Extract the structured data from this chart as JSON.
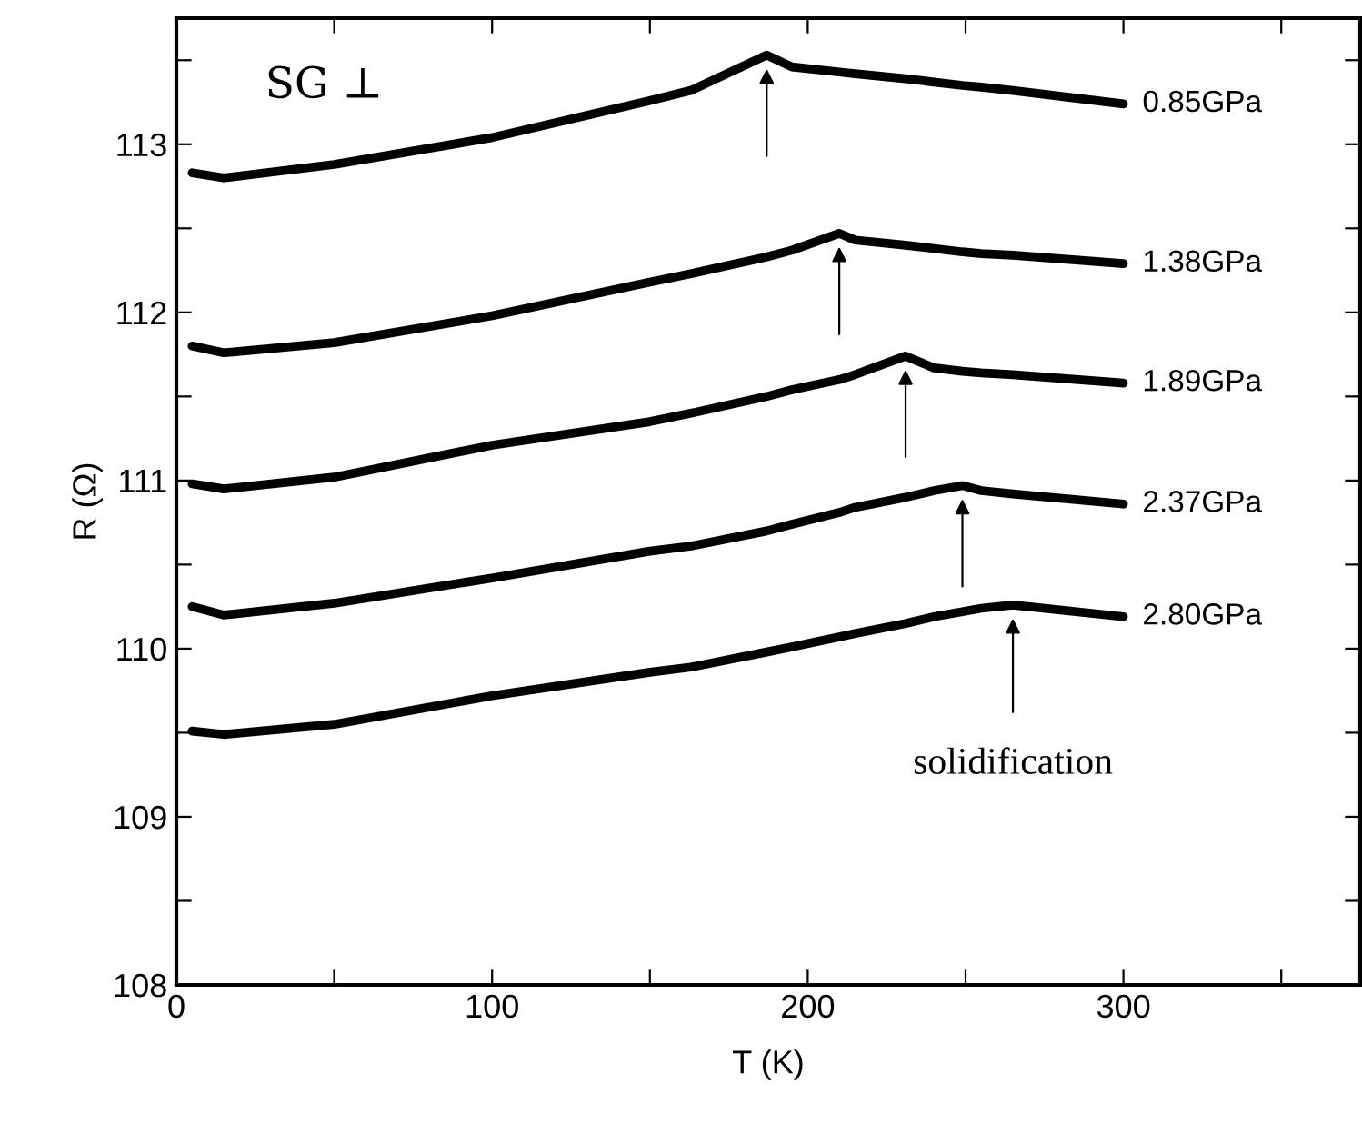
{
  "chart_data": {
    "type": "line",
    "xlabel": "T (K)",
    "ylabel": "R (Ω)",
    "x": [
      5,
      15,
      50,
      100,
      150,
      163,
      187,
      195,
      210,
      215,
      231,
      240,
      249,
      255,
      265,
      300
    ],
    "series": [
      {
        "name": "0.85GPa",
        "color": "#000000",
        "values": [
          112.83,
          112.8,
          112.88,
          113.04,
          113.26,
          113.32,
          113.53,
          113.46,
          113.43,
          113.42,
          113.39,
          113.37,
          113.35,
          113.34,
          113.32,
          113.24
        ]
      },
      {
        "name": "1.38GPa",
        "color": "#000000",
        "values": [
          111.8,
          111.76,
          111.82,
          111.98,
          112.18,
          112.23,
          112.33,
          112.37,
          112.47,
          112.43,
          112.4,
          112.38,
          112.36,
          112.35,
          112.34,
          112.29
        ]
      },
      {
        "name": "1.89GPa",
        "color": "#000000",
        "values": [
          110.98,
          110.95,
          111.02,
          111.21,
          111.35,
          111.4,
          111.5,
          111.54,
          111.6,
          111.63,
          111.74,
          111.67,
          111.65,
          111.64,
          111.63,
          111.58
        ]
      },
      {
        "name": "2.37GPa",
        "color": "#000000",
        "values": [
          110.25,
          110.2,
          110.27,
          110.42,
          110.58,
          110.61,
          110.7,
          110.74,
          110.81,
          110.84,
          110.9,
          110.94,
          110.97,
          110.94,
          110.92,
          110.86
        ]
      },
      {
        "name": "2.80GPa",
        "color": "#000000",
        "values": [
          109.51,
          109.49,
          109.55,
          109.72,
          109.86,
          109.89,
          109.98,
          110.01,
          110.07,
          110.09,
          110.15,
          110.19,
          110.22,
          110.24,
          110.26,
          110.19
        ]
      }
    ],
    "xlim": [
      0,
      375
    ],
    "ylim": [
      108,
      113.75
    ],
    "xticks": [
      0,
      {
        "value": 50,
        "label": null
      },
      100,
      {
        "value": 150,
        "label": null
      },
      200,
      {
        "value": 250,
        "label": null
      },
      300,
      {
        "value": 350,
        "label": null
      }
    ],
    "yticks": [
      108,
      {
        "value": 108.5,
        "label": null
      },
      109,
      {
        "value": 109.5,
        "label": null
      },
      110,
      {
        "value": 110.5,
        "label": null
      },
      111,
      {
        "value": 111.5,
        "label": null
      },
      112,
      {
        "value": 112.5,
        "label": null
      },
      113,
      {
        "value": 113.5,
        "label": null
      }
    ],
    "grid": false,
    "legend": false,
    "marker": "none",
    "line_style": "solid",
    "annotations": [
      "SG ⊥",
      {
        "text": "solidification",
        "x": 265,
        "y": 110.26
      }
    ]
  }
}
